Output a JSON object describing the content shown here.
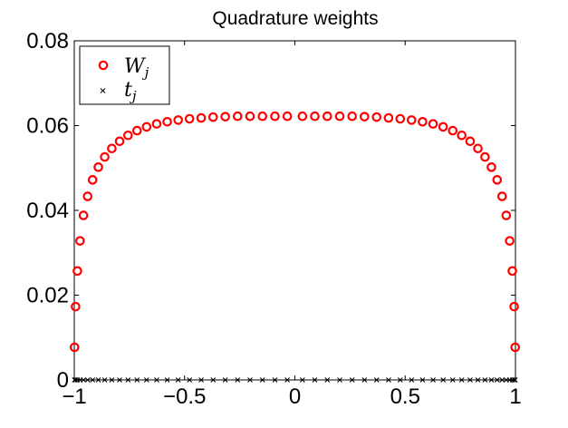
{
  "chart_data": {
    "type": "scatter",
    "title": "Quadrature weights",
    "xlabel": "",
    "ylabel": "",
    "xlim": [
      -1,
      1
    ],
    "ylim": [
      0,
      0.08
    ],
    "xticks": [
      -1,
      -0.5,
      0,
      0.5,
      1
    ],
    "xtick_labels": [
      "−1",
      "−0.5",
      "0",
      "0.5",
      "1"
    ],
    "yticks": [
      0,
      0.02,
      0.04,
      0.06,
      0.08
    ],
    "ytick_labels": [
      "0",
      "0.02",
      "0.04",
      "0.06",
      "0.08"
    ],
    "grid": false,
    "legend_position": "top-left",
    "series": [
      {
        "name": "W_j",
        "legend_main": "W",
        "legend_sub": "j",
        "marker": "circle",
        "color": "#ff0000",
        "x": [
          -0.9989,
          -0.9942,
          -0.9859,
          -0.9739,
          -0.9584,
          -0.9394,
          -0.9169,
          -0.891,
          -0.862,
          -0.8298,
          -0.7945,
          -0.7564,
          -0.7156,
          -0.6722,
          -0.6265,
          -0.5787,
          -0.529,
          -0.4776,
          -0.4247,
          -0.3706,
          -0.3155,
          -0.2597,
          -0.2034,
          -0.1469,
          -0.0904,
          -0.0343,
          0.0343,
          0.0904,
          0.1469,
          0.2034,
          0.2597,
          0.3155,
          0.3706,
          0.4247,
          0.4776,
          0.529,
          0.5787,
          0.6265,
          0.6722,
          0.7156,
          0.7564,
          0.7945,
          0.8298,
          0.862,
          0.891,
          0.9169,
          0.9394,
          0.9584,
          0.9739,
          0.9859,
          0.9942,
          0.9989
        ],
        "y": [
          0.0077,
          0.0173,
          0.0257,
          0.0328,
          0.0388,
          0.0433,
          0.0472,
          0.0502,
          0.0526,
          0.0546,
          0.0563,
          0.0577,
          0.0588,
          0.0597,
          0.0604,
          0.0609,
          0.0613,
          0.0616,
          0.0618,
          0.062,
          0.0621,
          0.0622,
          0.0622,
          0.0622,
          0.0622,
          0.0622,
          0.0622,
          0.0622,
          0.0622,
          0.0622,
          0.0622,
          0.0621,
          0.062,
          0.0618,
          0.0616,
          0.0613,
          0.0609,
          0.0604,
          0.0597,
          0.0588,
          0.0577,
          0.0563,
          0.0546,
          0.0526,
          0.0502,
          0.0472,
          0.0433,
          0.0388,
          0.0328,
          0.0257,
          0.0173,
          0.0077
        ]
      },
      {
        "name": "t_j",
        "legend_main": "t",
        "legend_sub": "j",
        "marker": "x",
        "color": "#000000",
        "x": [
          -0.9989,
          -0.9942,
          -0.9859,
          -0.9739,
          -0.9584,
          -0.9394,
          -0.9169,
          -0.891,
          -0.862,
          -0.8298,
          -0.7945,
          -0.7564,
          -0.7156,
          -0.6722,
          -0.6265,
          -0.5787,
          -0.529,
          -0.4776,
          -0.4247,
          -0.3706,
          -0.3155,
          -0.2597,
          -0.2034,
          -0.1469,
          -0.0904,
          -0.0343,
          0.0343,
          0.0904,
          0.1469,
          0.2034,
          0.2597,
          0.3155,
          0.3706,
          0.4247,
          0.4776,
          0.529,
          0.5787,
          0.6265,
          0.6722,
          0.7156,
          0.7564,
          0.7945,
          0.8298,
          0.862,
          0.891,
          0.9169,
          0.9394,
          0.9584,
          0.9739,
          0.9859,
          0.9942,
          0.9989
        ],
        "y": [
          0,
          0,
          0,
          0,
          0,
          0,
          0,
          0,
          0,
          0,
          0,
          0,
          0,
          0,
          0,
          0,
          0,
          0,
          0,
          0,
          0,
          0,
          0,
          0,
          0,
          0,
          0,
          0,
          0,
          0,
          0,
          0,
          0,
          0,
          0,
          0,
          0,
          0,
          0,
          0,
          0,
          0,
          0,
          0,
          0,
          0,
          0,
          0,
          0,
          0,
          0,
          0
        ]
      }
    ]
  }
}
